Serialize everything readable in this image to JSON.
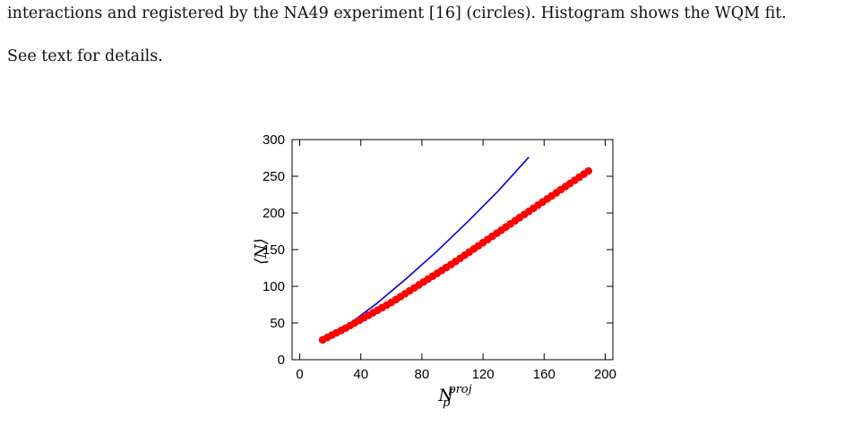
{
  "caption": {
    "line1": "interactions and registered by the NA49 experiment [16] (circles). Histogram shows the WQM fit.",
    "line2": "See text for details."
  },
  "chart_data": {
    "type": "scatter",
    "xlabel_main": "N",
    "xlabel_sub": "p",
    "xlabel_sup": "proj",
    "ylabel": "⟨N⟩",
    "xlim": [
      -5,
      205
    ],
    "ylim": [
      0,
      300
    ],
    "x_ticks": [
      0,
      40,
      80,
      120,
      160,
      200
    ],
    "y_ticks": [
      0,
      50,
      100,
      150,
      200,
      250,
      300
    ],
    "colors": {
      "circles": "#ff0000",
      "histogram": "#0000dd"
    },
    "series": [
      {
        "kind": "circles",
        "x_start": 15,
        "x_end": 191,
        "x_step": 3,
        "points_anchor": [
          [
            15,
            27
          ],
          [
            30,
            43
          ],
          [
            60,
            78
          ],
          [
            100,
            131
          ],
          [
            140,
            188
          ],
          [
            191,
            260
          ]
        ]
      },
      {
        "kind": "line",
        "x": [
          15,
          30,
          50,
          70,
          90,
          110,
          130,
          150
        ],
        "y": [
          27,
          45,
          76,
          111,
          148,
          188,
          230,
          276
        ]
      }
    ]
  }
}
